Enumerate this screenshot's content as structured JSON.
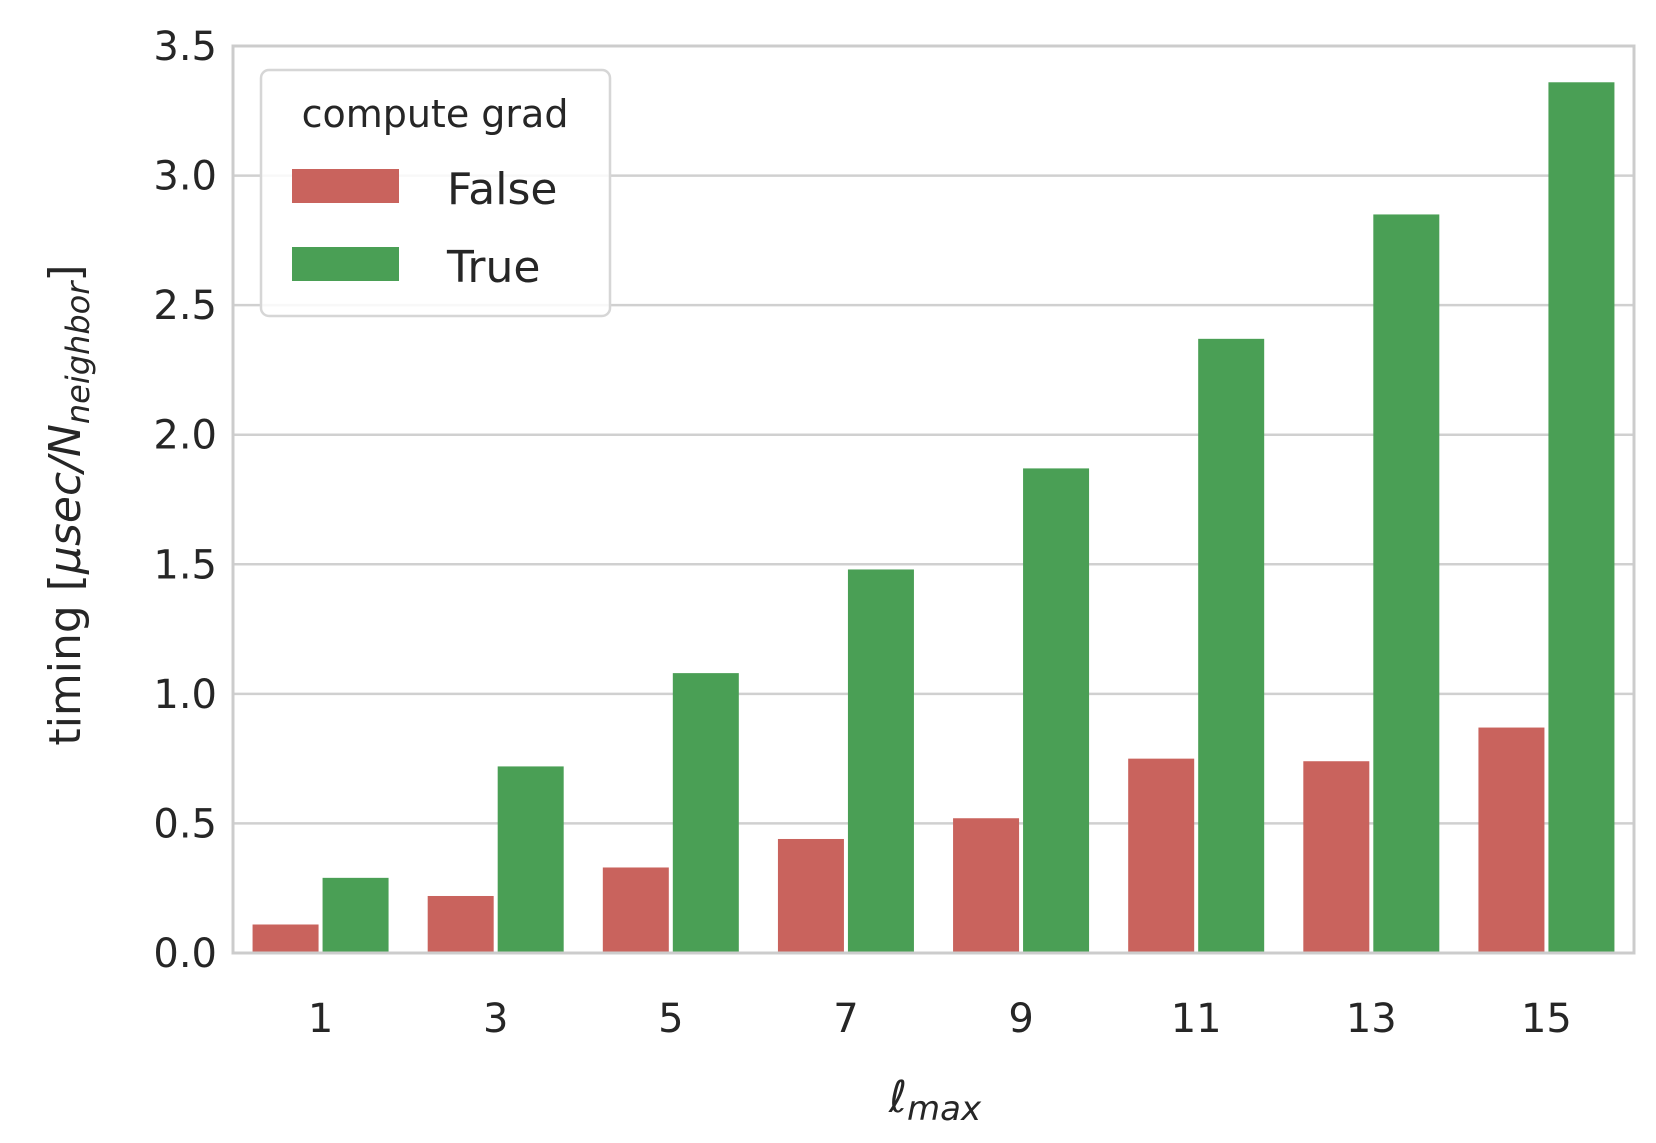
{
  "chart_data": {
    "type": "bar",
    "title": "",
    "xlabel": "ℓmax",
    "xlabel_main": "ℓ",
    "xlabel_sub": "max",
    "ylabel": "timing [μsec/Nneighbor]",
    "ylabel_prefix": "timing [",
    "ylabel_unit": "μsec/N",
    "ylabel_sub": "neighbor",
    "ylabel_suffix": "]",
    "categories": [
      "1",
      "3",
      "5",
      "7",
      "9",
      "11",
      "13",
      "15"
    ],
    "series": [
      {
        "name": "False",
        "color": "#c9635d",
        "values": [
          0.11,
          0.22,
          0.33,
          0.44,
          0.52,
          0.75,
          0.74,
          0.87
        ]
      },
      {
        "name": "True",
        "color": "#4a9f55",
        "values": [
          0.29,
          0.72,
          1.08,
          1.48,
          1.87,
          2.37,
          2.85,
          3.36
        ]
      }
    ],
    "ylim": [
      0,
      3.5
    ],
    "yticks": [
      "0.0",
      "0.5",
      "1.0",
      "1.5",
      "2.0",
      "2.5",
      "3.0",
      "3.5"
    ],
    "grid": "horizontal",
    "legend": {
      "title": "compute grad",
      "placement": "top-left"
    },
    "colors": {
      "grid": "#d0d0d0",
      "frame": "#cccccc",
      "text": "#262626"
    }
  }
}
